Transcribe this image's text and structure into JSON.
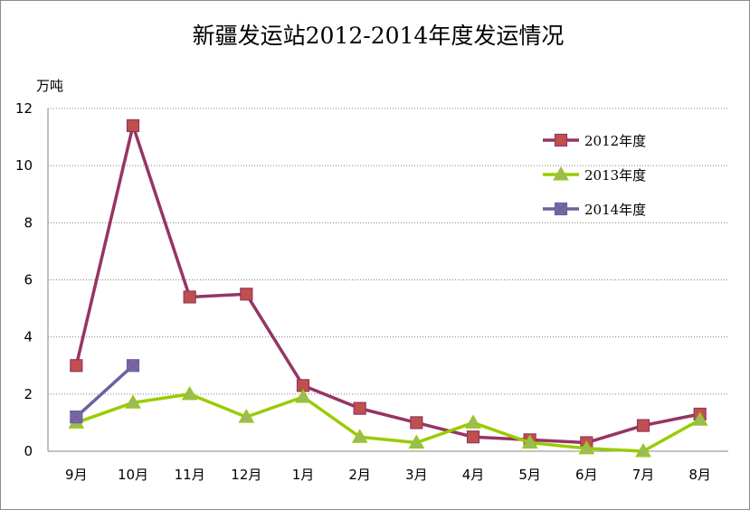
{
  "chart_data": {
    "type": "line",
    "title": "新疆发运站2012-2014年度发运情况",
    "ylabel": "万吨",
    "xlabel": "",
    "ylim": [
      0,
      12
    ],
    "yticks": [
      "0",
      "2",
      "4",
      "6",
      "8",
      "10",
      "12"
    ],
    "grid": true,
    "legend_position": "top-right",
    "categories": [
      "9月",
      "10月",
      "11月",
      "12月",
      "1月",
      "2月",
      "3月",
      "4月",
      "5月",
      "6月",
      "7月",
      "8月"
    ],
    "series": [
      {
        "name": "2012年度",
        "color": "#953563",
        "marker": "square",
        "marker_color": "#c0504d",
        "values": [
          3.0,
          11.4,
          5.4,
          5.5,
          2.3,
          1.5,
          1.0,
          0.5,
          0.4,
          0.3,
          0.9,
          1.3
        ]
      },
      {
        "name": "2013年度",
        "color": "#99cc00",
        "marker": "triangle",
        "marker_color": "#9bbb59",
        "values": [
          1.0,
          1.7,
          2.0,
          1.2,
          1.9,
          0.5,
          0.3,
          1.0,
          0.3,
          0.1,
          0.0,
          1.1
        ]
      },
      {
        "name": "2014年度",
        "color": "#68629f",
        "marker": "x-square",
        "marker_color": "#8064a2",
        "values": [
          1.2,
          3.0,
          null,
          null,
          null,
          null,
          null,
          null,
          null,
          null,
          null,
          null
        ]
      }
    ]
  }
}
